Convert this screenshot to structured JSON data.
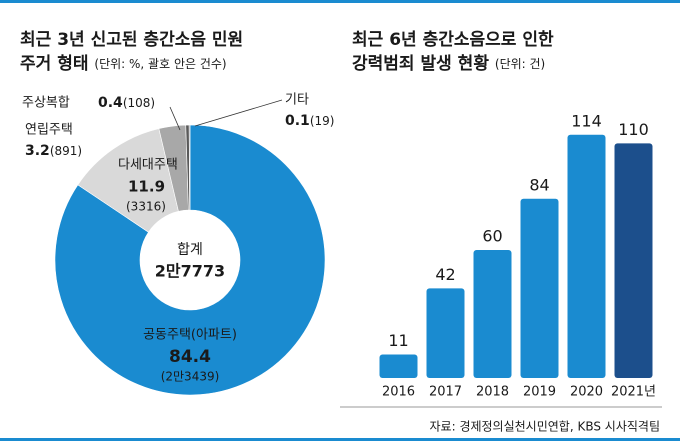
{
  "chart_data": [
    {
      "type": "donut",
      "title_lines": [
        "최근 3년 신고된 층간소음 민원",
        "주거 형태"
      ],
      "unit": "(단위: %, 괄호 안은 건수)",
      "categories": [
        "공동주택(아파트)",
        "다세대주택",
        "연립주택",
        "주상복합",
        "기타"
      ],
      "values": [
        84.4,
        11.9,
        3.2,
        0.4,
        0.1
      ],
      "count_labels": [
        "(2만3439)",
        "(3316)",
        "(891)",
        "(108)",
        "(19)"
      ],
      "colors": [
        "#1a8bd0",
        "#d9d9d9",
        "#a8a8a8",
        "#5a5a5a",
        "#1c2a3a"
      ],
      "total_label": "합계",
      "total": "2만7773"
    },
    {
      "type": "bar",
      "title_lines": [
        "최근 6년 층간소음으로 인한",
        "강력범죄 발생 현황"
      ],
      "unit": "(단위: 건)",
      "categories": [
        "2016",
        "2017",
        "2018",
        "2019",
        "2020",
        "2021년"
      ],
      "values": [
        11,
        42,
        60,
        84,
        114,
        110
      ],
      "colors": [
        "#1a8bd0",
        "#1a8bd0",
        "#1a8bd0",
        "#1a8bd0",
        "#1a8bd0",
        "#1c4f8c"
      ],
      "ylim": [
        0,
        120
      ]
    }
  ],
  "source": "자료: 경제정의실천시민연합, KBS 시사직격팀"
}
